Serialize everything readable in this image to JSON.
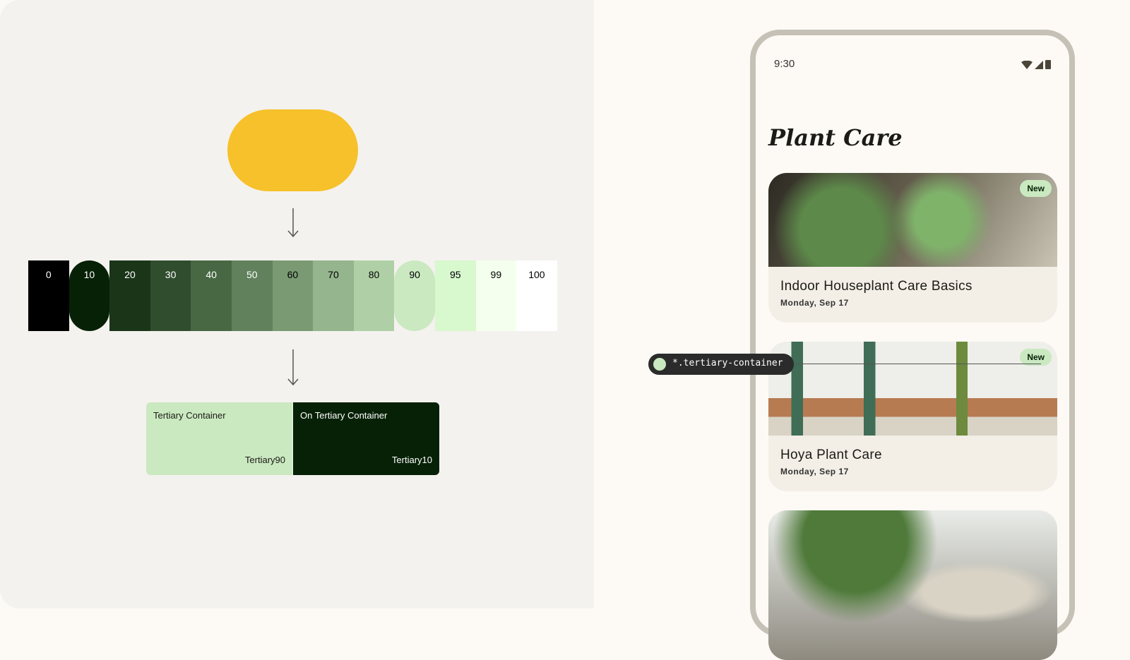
{
  "source_color": "#f6c12a",
  "tones": [
    {
      "label": "0",
      "color": "#000000",
      "text": "#ffffff"
    },
    {
      "label": "10",
      "color": "#072106",
      "text": "#ffffff",
      "highlight": true
    },
    {
      "label": "20",
      "color": "#1b3519",
      "text": "#ffffff"
    },
    {
      "label": "30",
      "color": "#304d2e",
      "text": "#ffffff"
    },
    {
      "label": "40",
      "color": "#476843",
      "text": "#ffffff"
    },
    {
      "label": "50",
      "color": "#60815b",
      "text": "#ffffff"
    },
    {
      "label": "60",
      "color": "#7a9a74",
      "text": "#000000"
    },
    {
      "label": "70",
      "color": "#94b58d",
      "text": "#000000"
    },
    {
      "label": "80",
      "color": "#afd0a6",
      "text": "#000000"
    },
    {
      "label": "90",
      "color": "#cae9c0",
      "text": "#000000",
      "highlight": true
    },
    {
      "label": "95",
      "color": "#d8f8ce",
      "text": "#000000"
    },
    {
      "label": "99",
      "color": "#f4ffed",
      "text": "#000000"
    },
    {
      "label": "100",
      "color": "#ffffff",
      "text": "#000000"
    }
  ],
  "roles": [
    {
      "name": "Tertiary Container",
      "tone": "Tertiary90",
      "color": "#cae9c0",
      "text": "#1c1b16"
    },
    {
      "name": "On Tertiary Container",
      "tone": "Tertiary10",
      "color": "#072106",
      "text": "#ffffff"
    }
  ],
  "phone": {
    "time": "9:30",
    "title": "Plant Care",
    "cards": [
      {
        "title": "Indoor Houseplant Care Basics",
        "date": "Monday, Sep 17",
        "badge": "New"
      },
      {
        "title": "Hoya Plant Care",
        "date": "Monday, Sep 17",
        "badge": "New"
      },
      {
        "title": "",
        "date": ""
      }
    ]
  },
  "token_tag": "*.tertiary-container"
}
